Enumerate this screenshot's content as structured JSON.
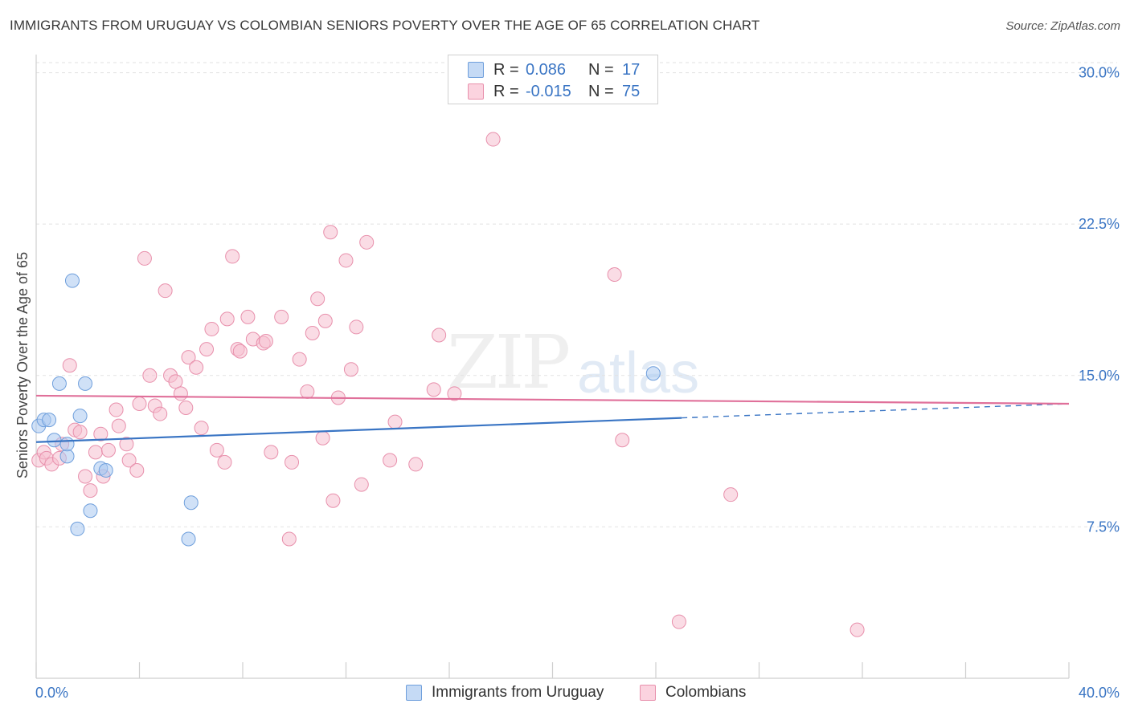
{
  "header": {
    "title": "IMMIGRANTS FROM URUGUAY VS COLOMBIAN SENIORS POVERTY OVER THE AGE OF 65 CORRELATION CHART",
    "source": "Source: ZipAtlas.com"
  },
  "watermark": {
    "zip": "ZIP",
    "atlas": "atlas"
  },
  "legend_top": [
    {
      "r_label": "R =",
      "r_value": "0.086",
      "n_label": "N =",
      "n_value": "17"
    },
    {
      "r_label": "R =",
      "r_value": "-0.015",
      "n_label": "N =",
      "n_value": "75"
    }
  ],
  "legend_bottom": [
    {
      "label": "Immigrants from Uruguay"
    },
    {
      "label": "Colombians"
    }
  ],
  "chart_data": {
    "type": "scatter",
    "title": "IMMIGRANTS FROM URUGUAY VS COLOMBIAN SENIORS POVERTY OVER THE AGE OF 65 CORRELATION CHART",
    "xlabel": "",
    "ylabel": "Seniors Poverty Over the Age of 65",
    "xlim": [
      0,
      40
    ],
    "ylim": [
      0,
      30.5
    ],
    "x_tick_labels": [
      "0.0%",
      "40.0%"
    ],
    "y_ticks": [
      7.5,
      15.0,
      22.5,
      30.0
    ],
    "y_tick_labels": [
      "7.5%",
      "15.0%",
      "22.5%",
      "30.0%"
    ],
    "grid": true,
    "series": [
      {
        "name": "Immigrants from Uruguay",
        "color": "#a9c8f0",
        "stroke": "#6f9fdc",
        "trend_color": "#3a75c4",
        "trend": {
          "x0": 0,
          "y0": 11.7,
          "x1": 25,
          "y1": 12.9,
          "dash_to_x": 40,
          "dash_to_y": 13.6
        },
        "points": [
          [
            0.1,
            12.5
          ],
          [
            0.3,
            12.8
          ],
          [
            0.5,
            12.8
          ],
          [
            0.7,
            11.8
          ],
          [
            0.9,
            14.6
          ],
          [
            1.2,
            11.0
          ],
          [
            1.2,
            11.6
          ],
          [
            1.4,
            19.7
          ],
          [
            1.6,
            7.4
          ],
          [
            1.7,
            13.0
          ],
          [
            1.9,
            14.6
          ],
          [
            2.1,
            8.3
          ],
          [
            2.5,
            10.4
          ],
          [
            2.7,
            10.3
          ],
          [
            6.0,
            8.7
          ],
          [
            5.9,
            6.9
          ],
          [
            23.9,
            15.1
          ]
        ]
      },
      {
        "name": "Colombians",
        "color": "#f6bfd0",
        "stroke": "#e890ac",
        "trend_color": "#e0709a",
        "trend": {
          "x0": 0,
          "y0": 14.0,
          "x1": 40,
          "y1": 13.6
        },
        "points": [
          [
            0.1,
            10.8
          ],
          [
            0.3,
            11.2
          ],
          [
            0.4,
            10.9
          ],
          [
            0.6,
            10.6
          ],
          [
            0.9,
            10.9
          ],
          [
            1.0,
            11.6
          ],
          [
            1.3,
            15.5
          ],
          [
            1.5,
            12.3
          ],
          [
            1.7,
            12.2
          ],
          [
            1.9,
            10.0
          ],
          [
            2.1,
            9.3
          ],
          [
            2.3,
            11.2
          ],
          [
            2.5,
            12.1
          ],
          [
            2.6,
            10.0
          ],
          [
            2.8,
            11.3
          ],
          [
            3.1,
            13.3
          ],
          [
            3.2,
            12.5
          ],
          [
            3.5,
            11.6
          ],
          [
            3.6,
            10.8
          ],
          [
            3.9,
            10.3
          ],
          [
            4.0,
            13.6
          ],
          [
            4.2,
            20.8
          ],
          [
            4.4,
            15.0
          ],
          [
            4.6,
            13.5
          ],
          [
            4.8,
            13.1
          ],
          [
            5.0,
            19.2
          ],
          [
            5.2,
            15.0
          ],
          [
            5.4,
            14.7
          ],
          [
            5.6,
            14.1
          ],
          [
            5.8,
            13.4
          ],
          [
            5.9,
            15.9
          ],
          [
            6.2,
            15.4
          ],
          [
            6.4,
            12.4
          ],
          [
            6.6,
            16.3
          ],
          [
            6.8,
            17.3
          ],
          [
            7.0,
            11.3
          ],
          [
            7.3,
            10.7
          ],
          [
            7.4,
            17.8
          ],
          [
            7.6,
            20.9
          ],
          [
            7.8,
            16.3
          ],
          [
            7.9,
            16.2
          ],
          [
            8.2,
            17.9
          ],
          [
            8.4,
            16.8
          ],
          [
            8.8,
            16.6
          ],
          [
            8.9,
            16.7
          ],
          [
            9.1,
            11.2
          ],
          [
            9.5,
            17.9
          ],
          [
            9.8,
            6.9
          ],
          [
            9.9,
            10.7
          ],
          [
            10.2,
            15.8
          ],
          [
            10.5,
            14.2
          ],
          [
            10.7,
            17.1
          ],
          [
            10.9,
            18.8
          ],
          [
            11.1,
            11.9
          ],
          [
            11.2,
            17.7
          ],
          [
            11.5,
            8.8
          ],
          [
            11.7,
            13.9
          ],
          [
            12.0,
            20.7
          ],
          [
            12.2,
            15.3
          ],
          [
            12.4,
            17.4
          ],
          [
            12.6,
            9.6
          ],
          [
            12.8,
            21.6
          ],
          [
            11.4,
            22.1
          ],
          [
            13.7,
            10.8
          ],
          [
            13.9,
            12.7
          ],
          [
            14.7,
            10.6
          ],
          [
            15.4,
            14.3
          ],
          [
            15.6,
            17.0
          ],
          [
            16.2,
            14.1
          ],
          [
            17.7,
            26.7
          ],
          [
            22.4,
            20.0
          ],
          [
            22.7,
            11.8
          ],
          [
            24.9,
            2.8
          ],
          [
            26.9,
            9.1
          ],
          [
            31.8,
            2.4
          ]
        ]
      }
    ]
  }
}
